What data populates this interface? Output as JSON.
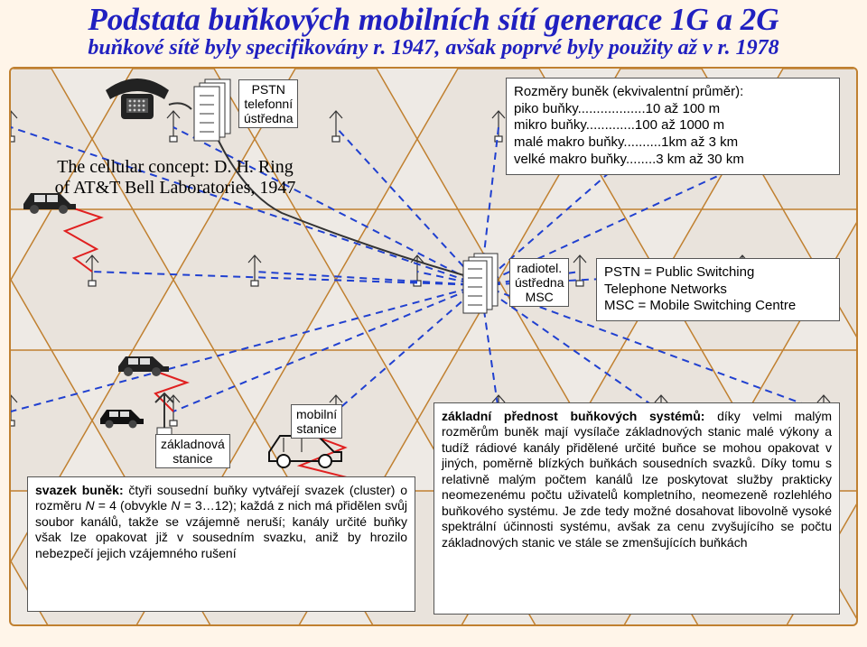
{
  "title": "Podstata buňkových mobilních sítí generace 1G a 2G",
  "subtitle": "buňkové sítě byly specifikovány r. 1947, avšak poprvé byly použity až v r. 1978",
  "attribution": {
    "line1": "The cellular concept: D. H. Ring",
    "line2": "of AT&T Bell Laboratories, 1947"
  },
  "pstn_box": "PSTN\ntelefonní\nústředna",
  "dimensions_box": {
    "title": "Rozměry buněk (ekvivalentní průměr):",
    "rows": [
      "piko buňky..................10 až 100 m",
      "mikro buňky.............100 až 1000 m",
      "malé makro buňky..........1km až 3 km",
      "velké makro buňky........3 km až 30 km"
    ]
  },
  "msc_label": "radiotel.\nústředna\nMSC",
  "abbr_box": "PSTN = Public Switching\nTelephone Networks\nMSC = Mobile Switching Centre",
  "bs_label": "základnová\nstanice",
  "ms_label": "mobilní\nstanice",
  "cluster_text": "svazek buněk: čtyři sousední buňky vytvářejí svazek (cluster) o rozměru N = 4 (obvykle N = 3…12); každá z nich má přidělen svůj soubor kanálů, takže se vzájemně neruší; kanály určité buňky však lze opakovat již v sousedním svazku, aniž by hrozilo nebezpečí jejich vzájemného rušení",
  "advantage_text": "základní přednost buňkových systémů: díky velmi malým rozměrům buněk mají vysílače základnových stanic malé výkony a tudíž rádiové kanály přidělené určité buňce se mohou opakovat v jiných, poměrně blízkých buňkách sousedních svazků. Díky tomu s relativně malým počtem kanálů lze poskytovat služby prakticky neomezenému počtu uživatelů kompletního, neomezeně rozlehlého buňkového systému. Je zde tedy možné dosahovat libovolně vysoké spektrální účinnosti systému, avšak za cenu zvyšujícího se počtu základnových stanic ve stále se zmenšujících buňkách",
  "colors": {
    "title": "#2020c0",
    "border": "#c08030",
    "red": "#e02020",
    "blue": "#2040d0",
    "bg": "#fff5e9",
    "hexfill": "#e9e3dc"
  }
}
